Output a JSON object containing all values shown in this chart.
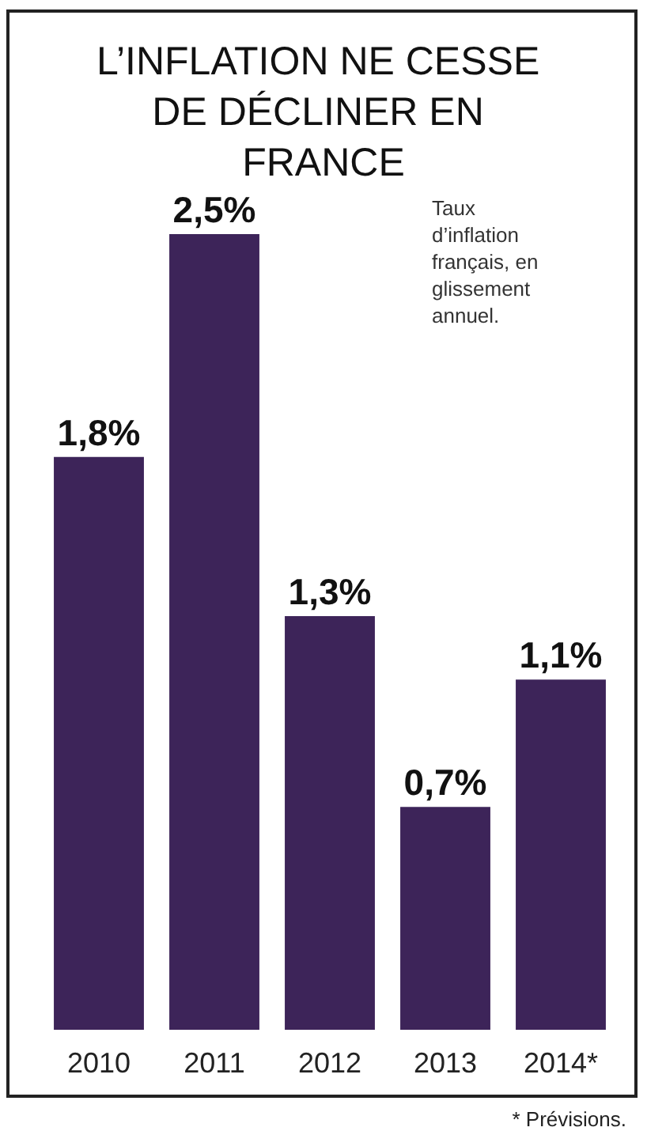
{
  "chart_data": {
    "type": "bar",
    "title": "L’INFLATION NE CESSE DE DÉCLINER EN FRANCE",
    "categories": [
      "2010",
      "2011",
      "2012",
      "2013",
      "2014*"
    ],
    "values": [
      1.8,
      2.5,
      1.3,
      0.7,
      1.1
    ],
    "value_labels": [
      "1,8%",
      "2,5%",
      "1,3%",
      "0,7%",
      "1,1%"
    ],
    "color": "#3d2459",
    "annotations": [
      "Taux d’inflation français, en glissement annuel.",
      "* Prévisions."
    ],
    "orientation": "vertical"
  }
}
